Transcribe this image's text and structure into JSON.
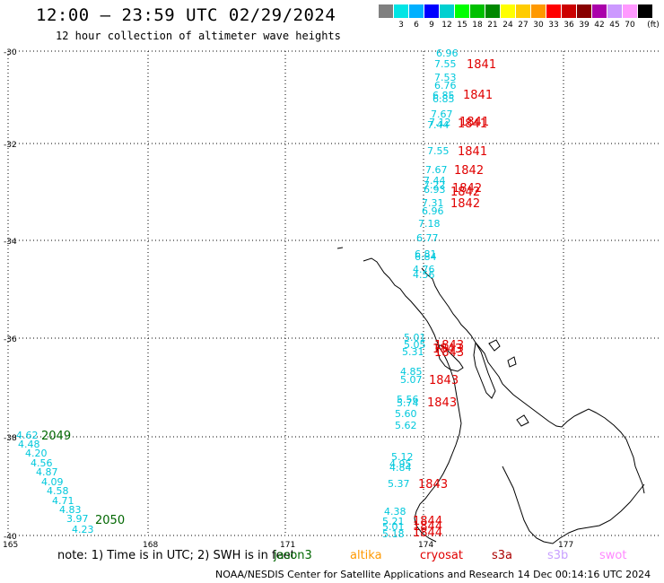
{
  "header": {
    "title": "12:00 — 23:59 UTC 02/29/2024",
    "subtitle": "12 hour collection of altimeter wave heights"
  },
  "scale": {
    "unit": "(ft)",
    "bins": [
      {
        "color": "#808080",
        "label": ""
      },
      {
        "color": "#00e5e5",
        "label": "3"
      },
      {
        "color": "#00b0ff",
        "label": "6"
      },
      {
        "color": "#0000ff",
        "label": "9"
      },
      {
        "color": "#00d0d0",
        "label": "12"
      },
      {
        "color": "#00ff00",
        "label": "15"
      },
      {
        "color": "#00c000",
        "label": "18"
      },
      {
        "color": "#008800",
        "label": "21"
      },
      {
        "color": "#ffff00",
        "label": "24"
      },
      {
        "color": "#ffcc00",
        "label": "27"
      },
      {
        "color": "#ff9900",
        "label": "30"
      },
      {
        "color": "#ff0000",
        "label": "33"
      },
      {
        "color": "#cc0000",
        "label": "36"
      },
      {
        "color": "#880000",
        "label": "39"
      },
      {
        "color": "#aa00aa",
        "label": "42"
      },
      {
        "color": "#cc99ff",
        "label": "45"
      },
      {
        "color": "#ff99ff",
        "label": "70"
      },
      {
        "color": "#000000",
        "label": ""
      }
    ]
  },
  "axes": {
    "lat_ticks": [
      "-30",
      "-32",
      "-34",
      "-36",
      "-38",
      "-40"
    ],
    "lon_ticks": [
      "165",
      "168",
      "171",
      "174",
      "177"
    ]
  },
  "colors": {
    "wave": "#00c8dc",
    "cryosat": "#e00000",
    "jason": "#006600",
    "altika": "#ff9900",
    "s3a": "#aa0000",
    "s3b": "#c8a0ff",
    "swot": "#ff88ff"
  },
  "measurements": {
    "track_east": [
      "6.96",
      "7.55",
      "7.53",
      "6.76",
      "6.85",
      "6.85",
      "7.67",
      "7.12",
      "7.44",
      "7.55",
      "7.67",
      "7.44",
      "7.22",
      "6.93",
      "7.31",
      "6.96",
      "7.18",
      "6.77",
      "6.81",
      "6.84",
      "4.76",
      "4.56",
      "5.01",
      "5.05",
      "5.31",
      "4.85",
      "5.07",
      "5.56",
      "5.74",
      "5.60",
      "5.62",
      "5.12",
      "4.95",
      "4.84",
      "5.37",
      "4.38",
      "5.21",
      "5.01",
      "5.18"
    ],
    "track_west": [
      "4.62",
      "4.48",
      "4.20",
      "4.56",
      "4.87",
      "4.09",
      "4.58",
      "4.71",
      "4.83",
      "3.97",
      "4.23"
    ]
  },
  "times": {
    "cryosat": [
      "1841",
      "1841",
      "1841",
      "1841",
      "1841",
      "1842",
      "1842",
      "1842",
      "1842",
      "1843",
      "1843",
      "1843",
      "1843",
      "1843",
      "1843",
      "1844",
      "1844",
      "1844"
    ],
    "jason": [
      "2049",
      "2050"
    ]
  },
  "footer": {
    "note": "note:  1) Time is in UTC; 2) SWH is in feet",
    "satellites": {
      "jason": "jason3",
      "altika": "altika",
      "cryosat": "cryosat",
      "s3a": "s3a",
      "s3b": "s3b",
      "swot": "swot"
    },
    "credit": "NOAA/NESDIS Center for Satellite Applications and Research    14 Dec 00:14:16 UTC 2024"
  }
}
